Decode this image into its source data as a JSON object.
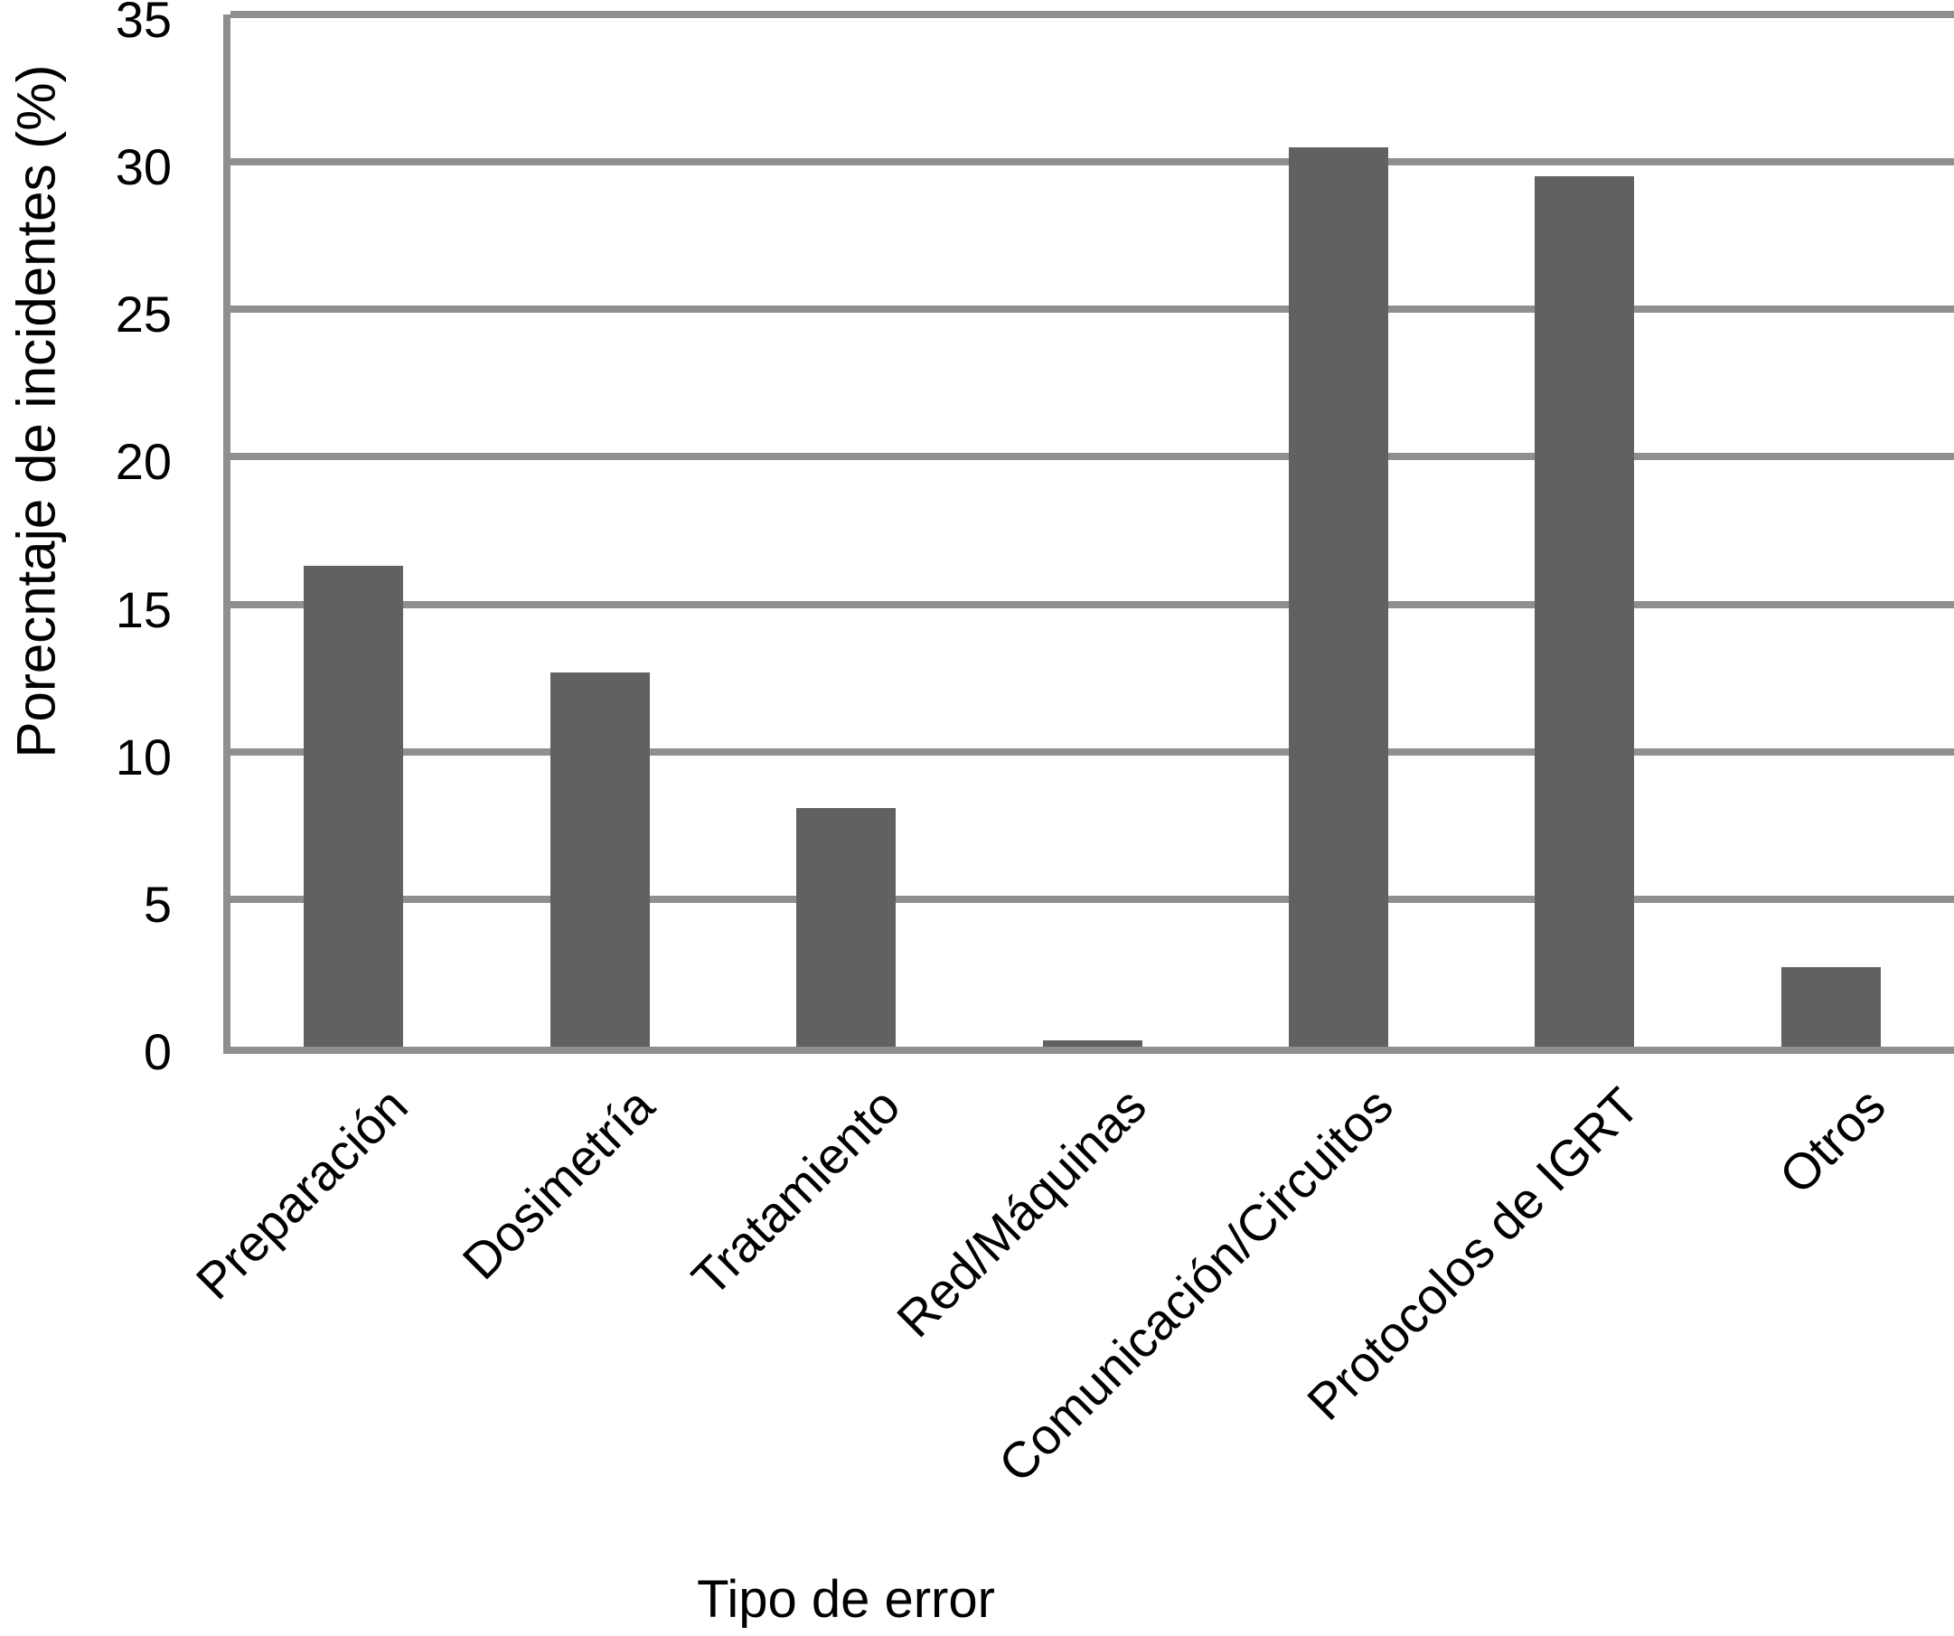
{
  "chart_data": {
    "type": "bar",
    "categories": [
      "Preparación",
      "Dosimetría",
      "Tratamiento",
      "Red/Máquinas",
      "Comunicación/Circuitos",
      "Protocolos de IGRT",
      "Otros"
    ],
    "values": [
      16.3,
      12.7,
      8.1,
      0.2,
      30.5,
      29.5,
      2.7
    ],
    "title": "",
    "xlabel": "Tipo de error",
    "ylabel": "Porecntaje de incidentes (%)",
    "ylim": [
      0,
      35
    ],
    "yticks": [
      0,
      5,
      10,
      15,
      20,
      25,
      30,
      35
    ],
    "grid": true,
    "legend": "none",
    "bar_color": "#616161",
    "grid_color": "#8f8f8f",
    "background_color": "#ffffff",
    "text_color": "#000000"
  }
}
